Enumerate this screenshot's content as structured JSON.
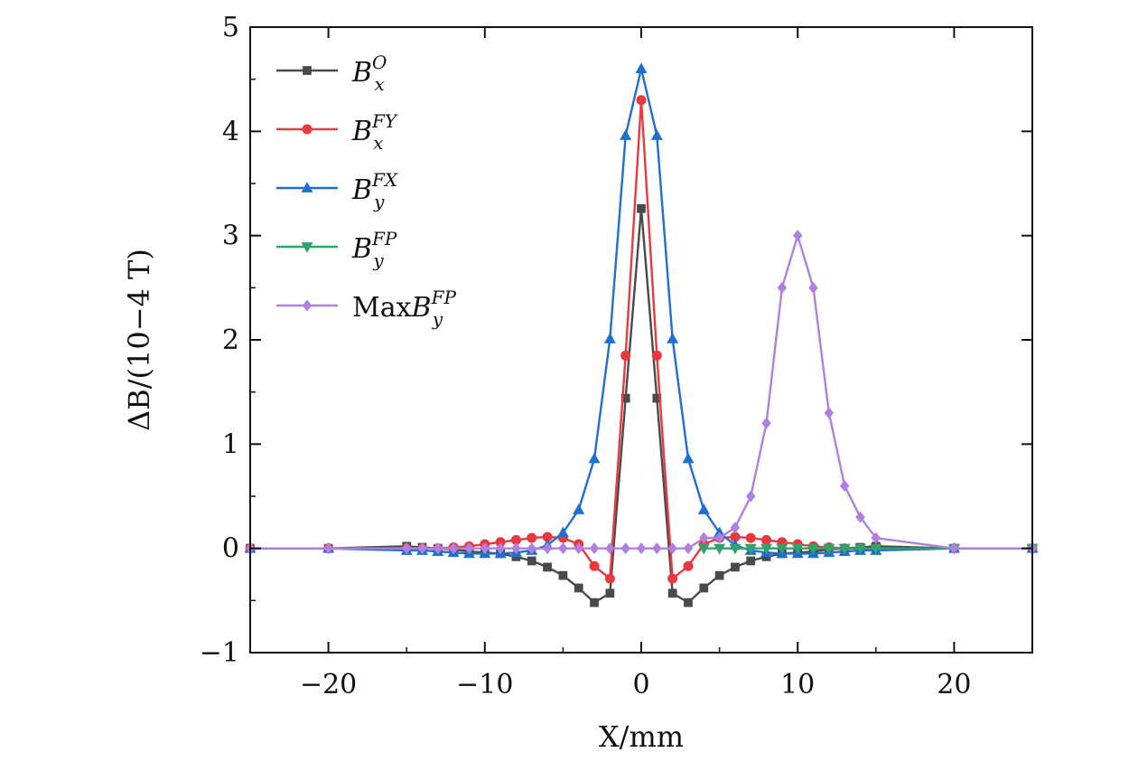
{
  "chart_data": {
    "type": "line",
    "xlabel": "X/mm",
    "ylabel": "ΔB/(10−4 T)",
    "xlim": [
      -25,
      25
    ],
    "ylim": [
      -1,
      5
    ],
    "xticks": [
      -20,
      -10,
      0,
      10,
      20
    ],
    "xtick_labels": [
      "−20",
      "−10",
      "0",
      "10",
      "20"
    ],
    "yticks": [
      -1,
      0,
      1,
      2,
      3,
      4,
      5
    ],
    "ytick_labels": [
      "−1",
      "0",
      "1",
      "2",
      "3",
      "4",
      "5"
    ],
    "grid": false,
    "legend_position": "top-left",
    "series": [
      {
        "name": "B_x^O",
        "legend": {
          "base": "B",
          "sub": "x",
          "sup": "O",
          "prefix": ""
        },
        "color": "#4a4a4a",
        "marker": "square",
        "x": [
          -25,
          -20,
          -15,
          -14,
          -13,
          -12,
          -11,
          -10,
          -9,
          -8,
          -7,
          -6,
          -5,
          -4,
          -3,
          -2,
          -1,
          0,
          1,
          2,
          3,
          4,
          5,
          6,
          7,
          8,
          9,
          10,
          11,
          12,
          13,
          14,
          15,
          20,
          25
        ],
        "y": [
          0,
          0,
          0.02,
          0.01,
          0,
          -0.01,
          -0.03,
          -0.04,
          -0.05,
          -0.08,
          -0.12,
          -0.18,
          -0.26,
          -0.38,
          -0.52,
          -0.43,
          1.44,
          3.26,
          1.44,
          -0.43,
          -0.52,
          -0.38,
          -0.26,
          -0.18,
          -0.12,
          -0.08,
          -0.05,
          -0.04,
          -0.03,
          -0.01,
          0,
          0.01,
          0.02,
          0,
          0
        ]
      },
      {
        "name": "B_x^FY",
        "legend": {
          "base": "B",
          "sub": "x",
          "sup": "FY",
          "prefix": ""
        },
        "color": "#e8393f",
        "marker": "circle",
        "x": [
          -25,
          -20,
          -15,
          -14,
          -13,
          -12,
          -11,
          -10,
          -9,
          -8,
          -7,
          -6,
          -5,
          -4,
          -3,
          -2,
          -1,
          0,
          1,
          2,
          3,
          4,
          5,
          6,
          7,
          8,
          9,
          10,
          11,
          12,
          13,
          14,
          15,
          20,
          25
        ],
        "y": [
          0,
          0,
          0,
          0,
          0,
          0.01,
          0.02,
          0.04,
          0.06,
          0.08,
          0.1,
          0.11,
          0.1,
          0.04,
          -0.17,
          -0.29,
          1.85,
          4.3,
          1.85,
          -0.29,
          -0.17,
          0.04,
          0.1,
          0.11,
          0.1,
          0.08,
          0.06,
          0.04,
          0.02,
          0.01,
          0,
          0,
          0,
          0,
          0
        ]
      },
      {
        "name": "B_y^FX",
        "legend": {
          "base": "B",
          "sub": "y",
          "sup": "FX",
          "prefix": ""
        },
        "color": "#1f6fd1",
        "marker": "triangle-up",
        "x": [
          -25,
          -20,
          -15,
          -14,
          -13,
          -12,
          -11,
          -10,
          -9,
          -8,
          -7,
          -6,
          -5,
          -4,
          -3,
          -2,
          -1,
          0,
          1,
          2,
          3,
          4,
          5,
          6,
          7,
          8,
          9,
          10,
          11,
          12,
          13,
          14,
          15,
          20,
          25
        ],
        "y": [
          0,
          0,
          -0.02,
          -0.02,
          -0.03,
          -0.04,
          -0.05,
          -0.05,
          -0.05,
          -0.04,
          -0.02,
          0.03,
          0.15,
          0.37,
          0.86,
          2.01,
          3.96,
          4.6,
          3.96,
          2.01,
          0.86,
          0.37,
          0.15,
          0.03,
          -0.02,
          -0.04,
          -0.05,
          -0.05,
          -0.05,
          -0.04,
          -0.03,
          -0.02,
          -0.02,
          0,
          0
        ]
      },
      {
        "name": "B_y^FP",
        "legend": {
          "base": "B",
          "sub": "y",
          "sup": "FP",
          "prefix": ""
        },
        "color": "#2fa36b",
        "marker": "triangle-down",
        "x": [
          4,
          5,
          6,
          7,
          8,
          9,
          10,
          11,
          12,
          13,
          14,
          15,
          20,
          25
        ],
        "y": [
          0,
          0,
          0,
          0,
          0,
          0,
          0,
          0,
          0,
          0,
          0,
          0,
          0,
          0
        ]
      },
      {
        "name": "MaxB_y^FP",
        "legend": {
          "base": "B",
          "sub": "y",
          "sup": "FP",
          "prefix": "Max"
        },
        "color": "#b07fe0",
        "marker": "diamond",
        "x": [
          -25,
          -20,
          -15,
          -14,
          -13,
          -12,
          -11,
          -10,
          -9,
          -8,
          -7,
          -6,
          -5,
          -4,
          -3,
          -2,
          -1,
          0,
          1,
          2,
          3,
          4,
          5,
          6,
          7,
          8,
          9,
          10,
          11,
          12,
          13,
          14,
          15,
          20,
          25
        ],
        "y": [
          0,
          0,
          0,
          0,
          0,
          0,
          0,
          0,
          0,
          0,
          0,
          0,
          0,
          0,
          0,
          0,
          0,
          0,
          0,
          0,
          0,
          0.1,
          0.1,
          0.2,
          0.5,
          1.2,
          2.5,
          3.0,
          2.5,
          1.3,
          0.6,
          0.3,
          0.1,
          0,
          0
        ]
      }
    ]
  }
}
